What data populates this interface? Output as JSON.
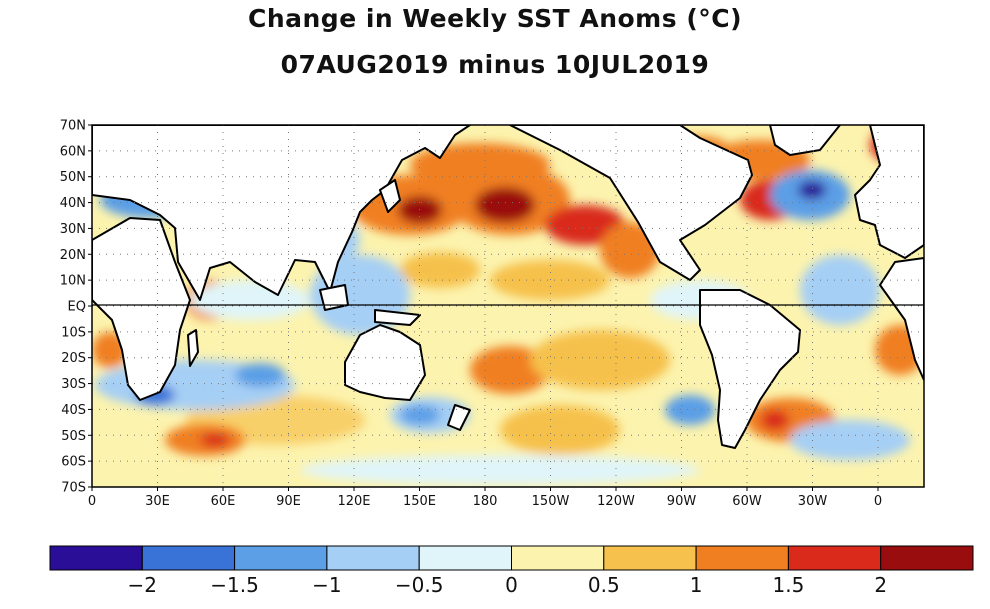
{
  "title": "Change in Weekly SST Anoms (°C)",
  "subtitle": "07AUG2019 minus 10JUL2019",
  "lat_labels": [
    "70N",
    "60N",
    "50N",
    "40N",
    "30N",
    "20N",
    "10N",
    "EQ",
    "10S",
    "20S",
    "30S",
    "40S",
    "50S",
    "60S",
    "70S"
  ],
  "lon_labels": [
    "0",
    "30E",
    "60E",
    "90E",
    "120E",
    "150E",
    "180",
    "150W",
    "120W",
    "90W",
    "60W",
    "30W",
    "0"
  ],
  "colorbar": {
    "colors": [
      "#2a0e98",
      "#3a73d8",
      "#5c9fe6",
      "#a6cff5",
      "#e0f5f9",
      "#fcf3ae",
      "#f6c14c",
      "#f07f22",
      "#d92a1b",
      "#9a0d0e"
    ],
    "labels": [
      "−2",
      "−1.5",
      "−1",
      "−0.5",
      "0",
      "0.5",
      "1",
      "1.5",
      "2"
    ]
  },
  "anomaly_regions": [
    {
      "label": "North Pacific 40N 180",
      "value": 2.2
    },
    {
      "label": "Sea of Japan",
      "value": 2.1
    },
    {
      "label": "NE Pacific 30N 135W",
      "value": 1.8
    },
    {
      "label": "North Atlantic 40N 40W",
      "value": -2.1
    },
    {
      "label": "South Indian 50S 55E",
      "value": 1.9
    },
    {
      "label": "South Pacific 25S 170W",
      "value": 1.6
    },
    {
      "label": "South Atlantic 45S 45W",
      "value": 1.7
    },
    {
      "label": "Southern Africa coast",
      "value": -1.8
    },
    {
      "label": "SE Indian Ocean",
      "value": -1.1
    },
    {
      "label": "Tasman Sea",
      "value": -1.0
    }
  ]
}
